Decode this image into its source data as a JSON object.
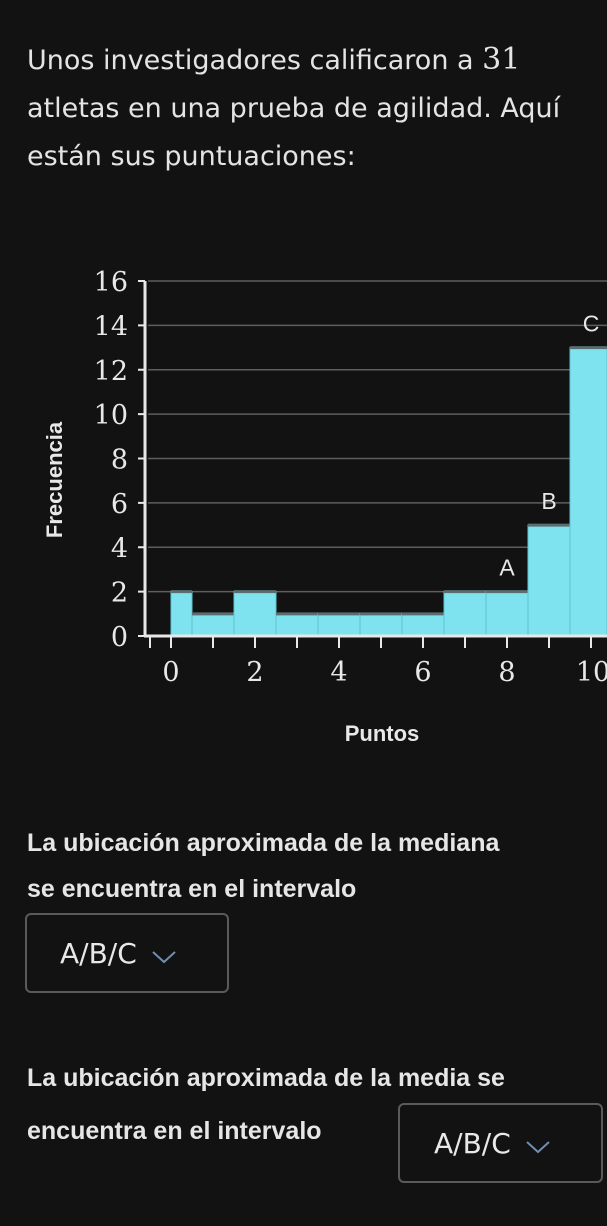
{
  "intro": {
    "part1": "Unos investigadores calificaron a ",
    "number": "31",
    "part2": " atletas en una prueba de agilidad. Aquí están sus puntuaciones:"
  },
  "questions": {
    "median_line1": "La ubicación aproximada de la mediana",
    "median_line2": "se encuentra en el intervalo",
    "mean_line1": "La ubicación aproximada de la media se",
    "mean_line2": "encuentra en el intervalo"
  },
  "dropdowns": {
    "median_value": "A/B/C",
    "mean_value": "A/B/C"
  },
  "icons": {
    "dropdown": "chevron-down-icon"
  },
  "colors": {
    "bar_fill": "#7ee3ee",
    "background": "#121212"
  },
  "chart_data": {
    "type": "bar",
    "xlabel": "Puntos",
    "ylabel": "Frecuencia",
    "bins": [
      {
        "start": 0,
        "end": 0.5,
        "value": 2
      },
      {
        "start": 0.5,
        "end": 1.5,
        "value": 1
      },
      {
        "start": 1.5,
        "end": 2.5,
        "value": 2
      },
      {
        "start": 2.5,
        "end": 3.5,
        "value": 1
      },
      {
        "start": 3.5,
        "end": 4.5,
        "value": 1
      },
      {
        "start": 4.5,
        "end": 5.5,
        "value": 1
      },
      {
        "start": 5.5,
        "end": 6.5,
        "value": 1
      },
      {
        "start": 6.5,
        "end": 7.5,
        "value": 2
      },
      {
        "start": 7.5,
        "end": 8.5,
        "value": 2
      },
      {
        "start": 8.5,
        "end": 9.5,
        "value": 5
      },
      {
        "start": 9.5,
        "end": 10.5,
        "value": 13
      }
    ],
    "ylim": [
      0,
      16
    ],
    "yticks": [
      "0",
      "2",
      "4",
      "6",
      "8",
      "10",
      "12",
      "14",
      "16"
    ],
    "xticks": [
      "0",
      "2",
      "4",
      "6",
      "8",
      "10"
    ],
    "grid": true,
    "annotations": [
      {
        "label": "A",
        "x": 8,
        "y": 2
      },
      {
        "label": "B",
        "x": 9,
        "y": 5
      },
      {
        "label": "C",
        "x": 10,
        "y": 13
      }
    ]
  }
}
